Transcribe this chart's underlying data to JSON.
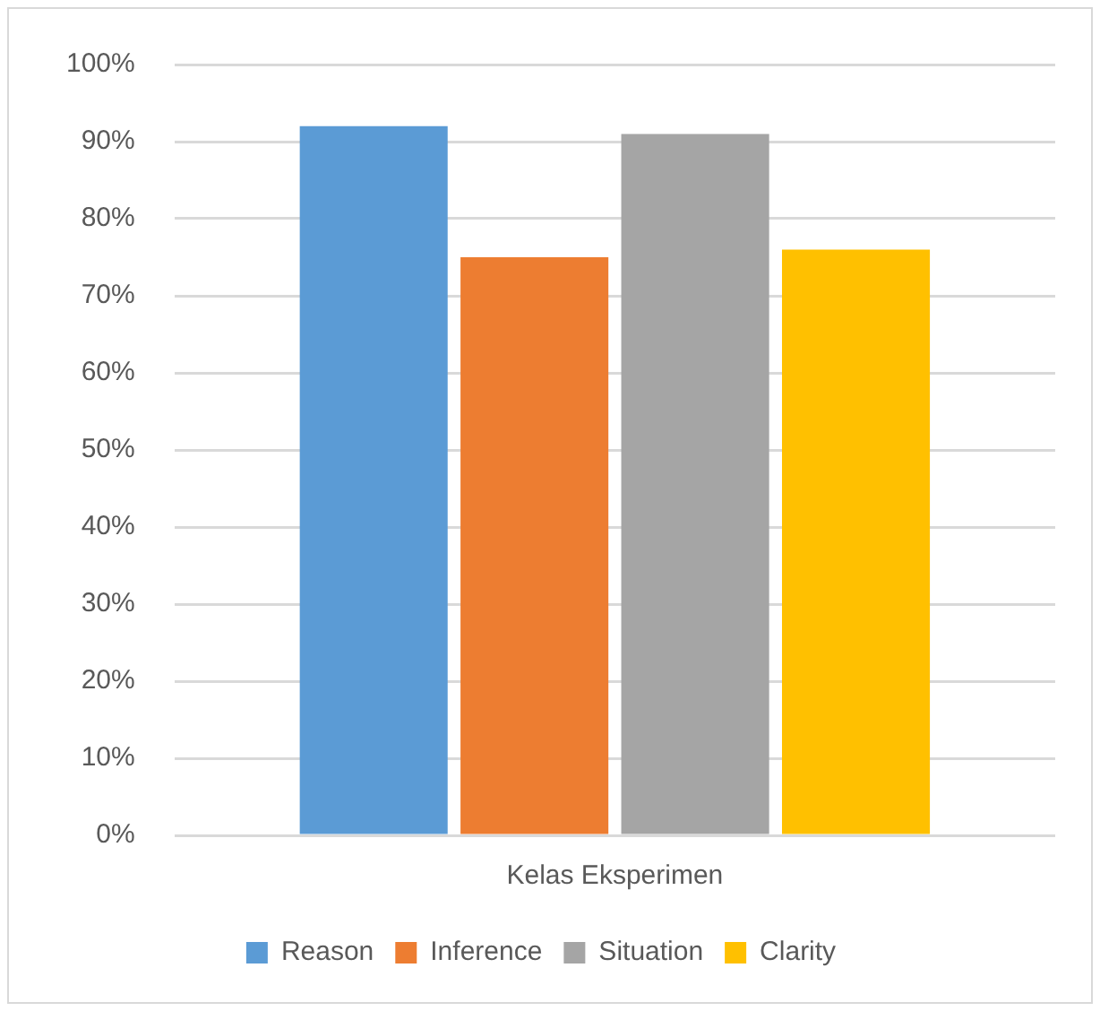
{
  "chart_data": {
    "type": "bar",
    "categories": [
      "Kelas Eksperimen"
    ],
    "series": [
      {
        "name": "Reason",
        "color": "#5b9bd5",
        "values": [
          92
        ]
      },
      {
        "name": "Inference",
        "color": "#ed7d31",
        "values": [
          75
        ]
      },
      {
        "name": "Situation",
        "color": "#a5a5a5",
        "values": [
          91
        ]
      },
      {
        "name": "Clarity",
        "color": "#ffc000",
        "values": [
          76
        ]
      }
    ],
    "ylim": [
      0,
      100
    ],
    "yticks": [
      {
        "value": 0,
        "label": "0%"
      },
      {
        "value": 10,
        "label": "10%"
      },
      {
        "value": 20,
        "label": "20%"
      },
      {
        "value": 30,
        "label": "30%"
      },
      {
        "value": 40,
        "label": "40%"
      },
      {
        "value": 50,
        "label": "50%"
      },
      {
        "value": 60,
        "label": "60%"
      },
      {
        "value": 70,
        "label": "70%"
      },
      {
        "value": 80,
        "label": "80%"
      },
      {
        "value": 90,
        "label": "90%"
      },
      {
        "value": 100,
        "label": "100%"
      }
    ],
    "grid": "y",
    "legend": "bottom"
  }
}
